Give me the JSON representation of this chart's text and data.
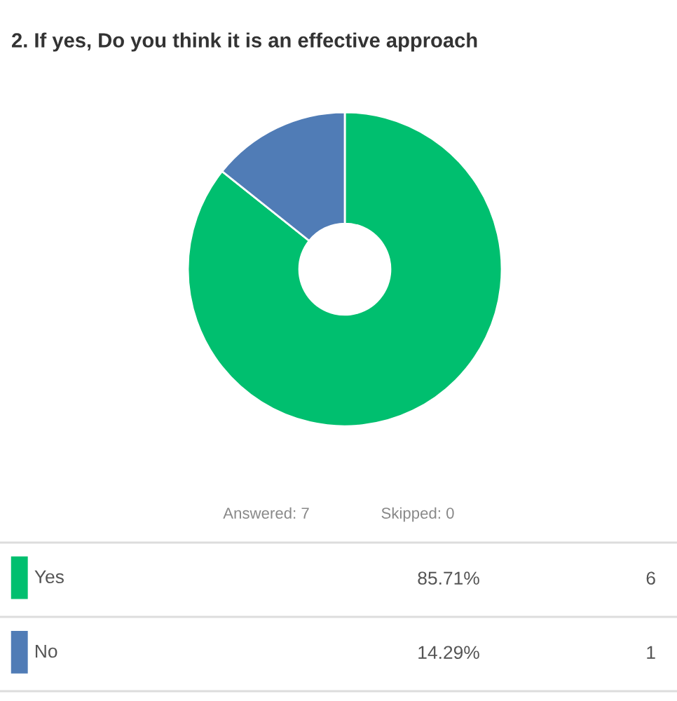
{
  "chart_data": {
    "type": "donut",
    "title": "2. If yes, Do you think it is an effective approach",
    "categories": [
      "Yes",
      "No"
    ],
    "values": [
      85.71,
      14.29
    ],
    "colors": [
      "#00bf6f",
      "#507cb6"
    ],
    "value_labels": [
      "85.71%",
      "14.29%"
    ],
    "annotations": [
      "Answered: 7",
      "Skipped: 0",
      "6",
      "1"
    ],
    "legend": "bottom"
  }
}
